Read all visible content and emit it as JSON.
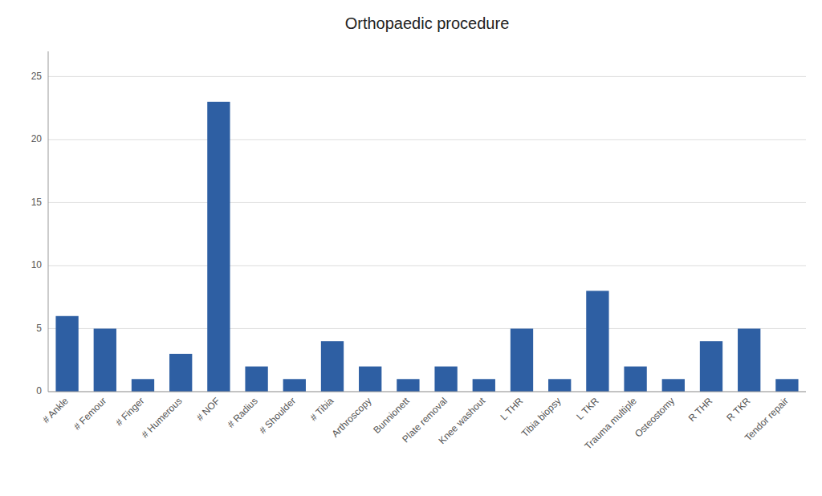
{
  "chart_data": {
    "type": "bar",
    "title": "Orthopaedic procedure",
    "categories": [
      "# Ankle",
      "# Femour",
      "# Finger",
      "# Humerous",
      "# NOF",
      "# Radius",
      "# Shoulder",
      "# Tibia",
      "Arthroscopy",
      "Bunnionett",
      "Plate removal",
      "Knee washout",
      "L THR",
      "Tibia biopsy",
      "L TKR",
      "Trauma multiple",
      "Osteostomy",
      "R THR",
      "R TKR",
      "Tendor repair"
    ],
    "values": [
      6,
      5,
      1,
      3,
      23,
      2,
      1,
      4,
      2,
      1,
      2,
      1,
      5,
      1,
      8,
      2,
      1,
      4,
      5,
      1
    ],
    "color": "#2E5FA3",
    "ylim": [
      0,
      27
    ],
    "yticks": [
      0,
      5,
      10,
      15,
      20,
      25
    ],
    "grid": true
  }
}
